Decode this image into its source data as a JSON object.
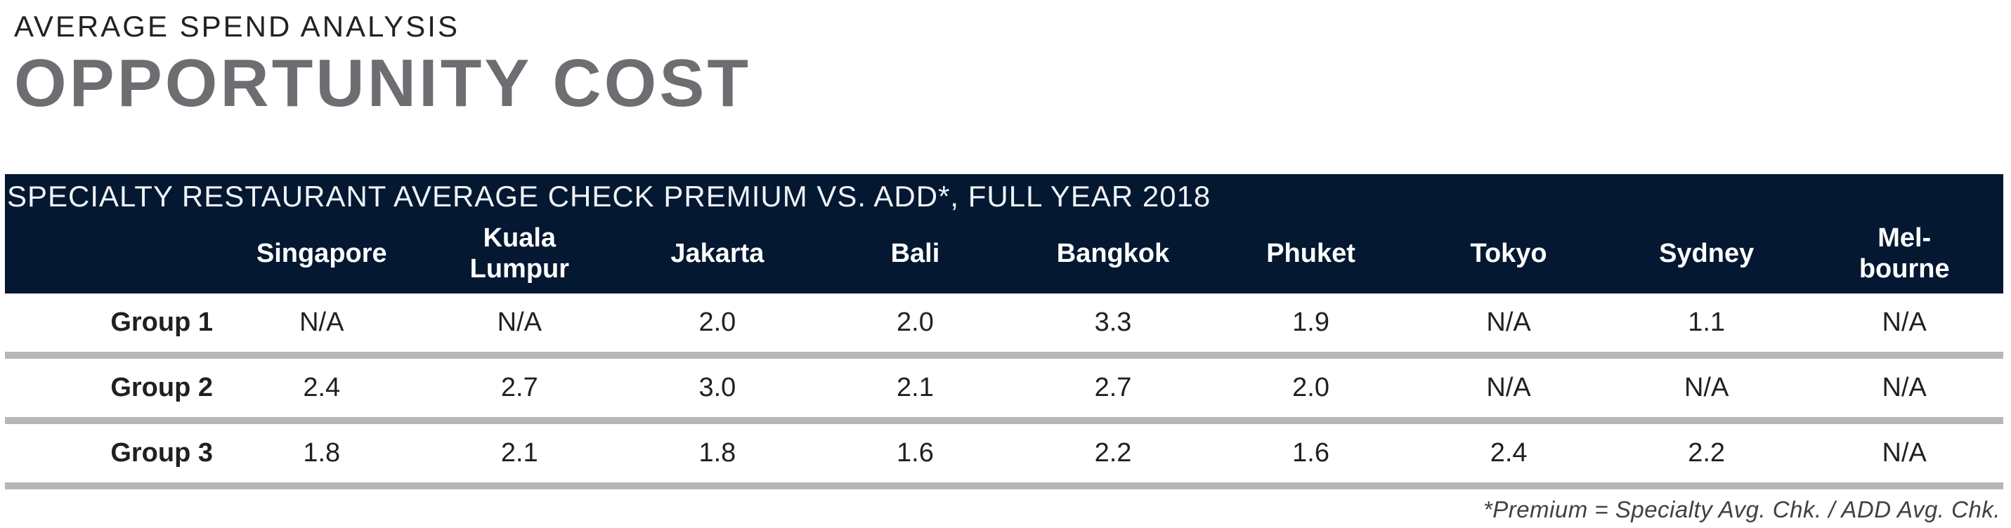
{
  "header": {
    "eyebrow": "AVERAGE SPEND ANALYSIS",
    "title": "OPPORTUNITY COST"
  },
  "table": {
    "caption": "SPECIALTY RESTAURANT AVERAGE CHECK PREMIUM VS. ADD*, FULL YEAR 2018",
    "columns": [
      "Singapore",
      "Kuala\nLumpur",
      "Jakarta",
      "Bali",
      "Bangkok",
      "Phuket",
      "Tokyo",
      "Sydney",
      "Mel-\nbourne"
    ],
    "rows": [
      {
        "label": "Group 1",
        "values": [
          "N/A",
          "N/A",
          "2.0",
          "2.0",
          "3.3",
          "1.9",
          "N/A",
          "1.1",
          "N/A"
        ]
      },
      {
        "label": "Group 2",
        "values": [
          "2.4",
          "2.7",
          "3.0",
          "2.1",
          "2.7",
          "2.0",
          "N/A",
          "N/A",
          "N/A"
        ]
      },
      {
        "label": "Group 3",
        "values": [
          "1.8",
          "2.1",
          "1.8",
          "1.6",
          "2.2",
          "1.6",
          "2.4",
          "2.2",
          "N/A"
        ]
      }
    ],
    "footnote": "*Premium = Specialty Avg. Chk. / ADD Avg. Chk."
  },
  "colors": {
    "header_band_navy": "#041831",
    "title_gray": "#6d6e71",
    "text_dark": "#231f20",
    "divider_gray": "#b7b7b9",
    "header_text_white": "#ffffff"
  },
  "chart_data": {
    "type": "table",
    "title": "SPECIALTY RESTAURANT AVERAGE CHECK PREMIUM VS. ADD*, FULL YEAR 2018",
    "subtitle": "AVERAGE SPEND ANALYSIS — OPPORTUNITY COST",
    "categories": [
      "Singapore",
      "Kuala Lumpur",
      "Jakarta",
      "Bali",
      "Bangkok",
      "Phuket",
      "Tokyo",
      "Sydney",
      "Melbourne"
    ],
    "series": [
      {
        "name": "Group 1",
        "values": [
          null,
          null,
          2.0,
          2.0,
          3.3,
          1.9,
          null,
          1.1,
          null
        ]
      },
      {
        "name": "Group 2",
        "values": [
          2.4,
          2.7,
          3.0,
          2.1,
          2.7,
          2.0,
          null,
          null,
          null
        ]
      },
      {
        "name": "Group 3",
        "values": [
          1.8,
          2.1,
          1.8,
          1.6,
          2.2,
          1.6,
          2.4,
          2.2,
          null
        ]
      }
    ],
    "na_display": "N/A",
    "footnote": "*Premium = Specialty Avg. Chk. / ADD Avg. Chk.",
    "layout": "header band navy, 3 data rows separated by thick light-gray rules, footnote right-aligned italic"
  }
}
